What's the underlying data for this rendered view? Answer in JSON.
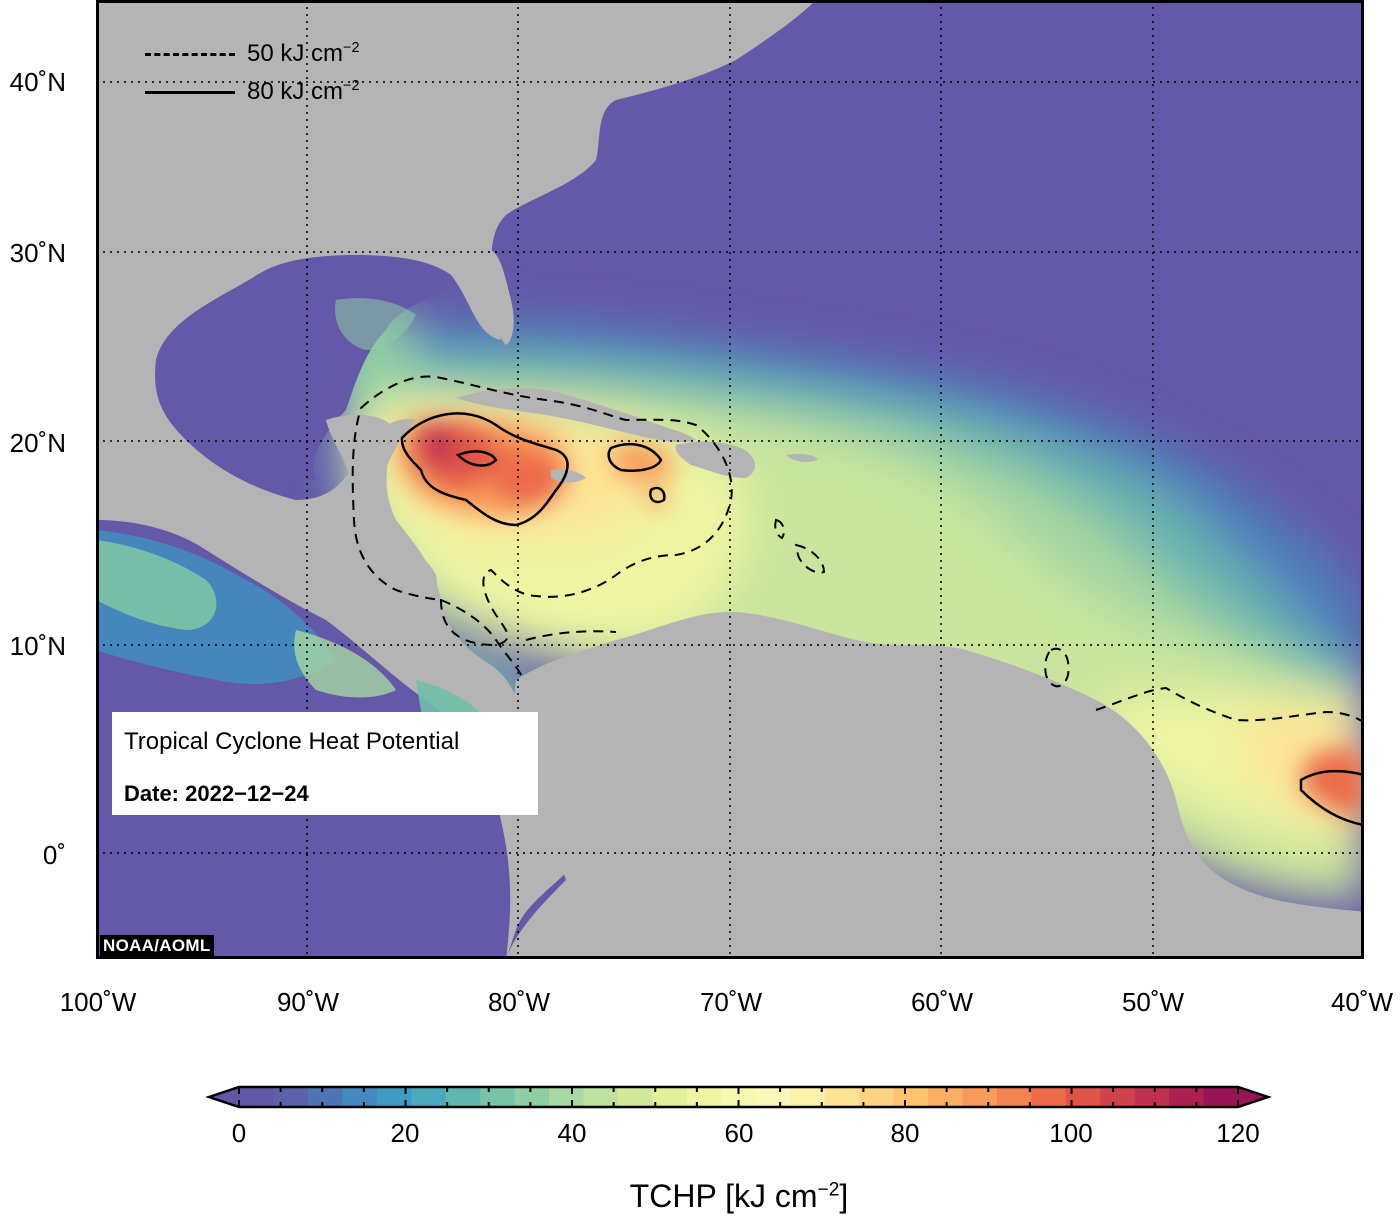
{
  "map": {
    "region": "Gulf of Mexico, Caribbean Sea and Tropical Atlantic",
    "lon_range": [
      -100,
      -40
    ],
    "lat_range": [
      -5,
      45
    ],
    "grid_lines": true,
    "lat_labels": [
      "40˚N",
      "30˚N",
      "20˚N",
      "10˚N",
      "0˚"
    ],
    "lon_labels": [
      "100˚W",
      "90˚W",
      "80˚W",
      "70˚W",
      "60˚W",
      "50˚W",
      "40˚W"
    ],
    "land_color": "#b4b4b4",
    "ocean_cold_color": "#6458a8"
  },
  "legend": {
    "dashed": {
      "value": "50",
      "unit": "kJ cm",
      "exp": "−2"
    },
    "solid": {
      "value": "80",
      "unit": "kJ cm",
      "exp": "−2"
    }
  },
  "info": {
    "title": "Tropical Cyclone Heat Potential",
    "date_label": "Date: 2022−12−24"
  },
  "credit": "NOAA/AOML",
  "colorbar": {
    "ticks": [
      "0",
      "20",
      "40",
      "60",
      "80",
      "100",
      "120"
    ],
    "range": [
      0,
      120
    ],
    "title": "TCHP [kJ cm",
    "title_exp": "−2",
    "title_end": "]",
    "colors": [
      "#6256a6",
      "#5c61ac",
      "#4f74b3",
      "#4488bf",
      "#3f9bc1",
      "#4aa9ba",
      "#5fb7b0",
      "#76c3a8",
      "#8fcea4",
      "#a8d9a3",
      "#bfe1a0",
      "#d2e99c",
      "#e2ef9b",
      "#eef4a2",
      "#f6f8b0",
      "#fbf7ba",
      "#fdf0a8",
      "#fde396",
      "#fdd582",
      "#fdc370",
      "#fcae63",
      "#f89a59",
      "#f3834f",
      "#ec6b4a",
      "#e15449",
      "#d2424b",
      "#c0304f",
      "#ad2152",
      "#981454"
    ]
  }
}
